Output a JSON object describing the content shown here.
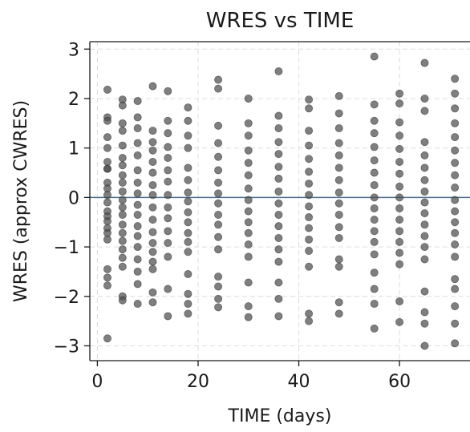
{
  "chart_data": {
    "type": "scatter",
    "title": "WRES vs TIME",
    "xlabel": "TIME (days)",
    "ylabel": "WRES (approx CWRES)",
    "xlim": [
      -1.5,
      74
    ],
    "ylim": [
      -3.3,
      3.15
    ],
    "xticks": [
      0,
      20,
      40,
      60
    ],
    "yticks": [
      -3,
      -2,
      -1,
      0,
      1,
      2,
      3
    ],
    "xtick_labels": [
      "0",
      "20",
      "40",
      "60"
    ],
    "ytick_labels": [
      "−3",
      "−2",
      "−1",
      "0",
      "1",
      "2",
      "3"
    ],
    "grid": true,
    "reference_line": {
      "y": 0,
      "color": "#4a6d8c"
    },
    "marker_color": "#4d4d4d",
    "series": [
      {
        "points": [
          {
            "x": 2,
            "y": 2.18
          },
          {
            "x": 2,
            "y": 1.62
          },
          {
            "x": 2,
            "y": 1.55
          },
          {
            "x": 2,
            "y": 1.22
          },
          {
            "x": 2,
            "y": 1.0
          },
          {
            "x": 2,
            "y": 0.72
          },
          {
            "x": 2,
            "y": 0.58
          },
          {
            "x": 2,
            "y": 0.58
          },
          {
            "x": 2,
            "y": 0.3
          },
          {
            "x": 2,
            "y": 0.18
          },
          {
            "x": 2,
            "y": 0.05
          },
          {
            "x": 2,
            "y": -0.1
          },
          {
            "x": 2,
            "y": -0.28
          },
          {
            "x": 2,
            "y": -0.38
          },
          {
            "x": 2,
            "y": -0.48
          },
          {
            "x": 2,
            "y": -0.62
          },
          {
            "x": 2,
            "y": -0.72
          },
          {
            "x": 2,
            "y": -0.85
          },
          {
            "x": 2,
            "y": -1.45
          },
          {
            "x": 2,
            "y": -1.62
          },
          {
            "x": 2,
            "y": -1.78
          },
          {
            "x": 2,
            "y": -2.85
          },
          {
            "x": 5,
            "y": 1.98
          },
          {
            "x": 5,
            "y": 1.86
          },
          {
            "x": 5,
            "y": 1.5
          },
          {
            "x": 5,
            "y": 1.35
          },
          {
            "x": 5,
            "y": 1.05
          },
          {
            "x": 5,
            "y": 0.8
          },
          {
            "x": 5,
            "y": 0.65
          },
          {
            "x": 5,
            "y": 0.45
          },
          {
            "x": 5,
            "y": 0.3
          },
          {
            "x": 5,
            "y": 0.12
          },
          {
            "x": 5,
            "y": -0.05
          },
          {
            "x": 5,
            "y": -0.2
          },
          {
            "x": 5,
            "y": -0.35
          },
          {
            "x": 5,
            "y": -0.55
          },
          {
            "x": 5,
            "y": -0.72
          },
          {
            "x": 5,
            "y": -0.88
          },
          {
            "x": 5,
            "y": -1.05
          },
          {
            "x": 5,
            "y": -1.22
          },
          {
            "x": 5,
            "y": -1.4
          },
          {
            "x": 5,
            "y": -2.0
          },
          {
            "x": 5,
            "y": -2.08
          },
          {
            "x": 8,
            "y": 1.95
          },
          {
            "x": 8,
            "y": 1.62
          },
          {
            "x": 8,
            "y": 1.4
          },
          {
            "x": 8,
            "y": 1.1
          },
          {
            "x": 8,
            "y": 0.85
          },
          {
            "x": 8,
            "y": 0.55
          },
          {
            "x": 8,
            "y": 0.3
          },
          {
            "x": 8,
            "y": 0.08
          },
          {
            "x": 8,
            "y": -0.15
          },
          {
            "x": 8,
            "y": -0.35
          },
          {
            "x": 8,
            "y": -0.58
          },
          {
            "x": 8,
            "y": -0.78
          },
          {
            "x": 8,
            "y": -1.0
          },
          {
            "x": 8,
            "y": -1.25
          },
          {
            "x": 8,
            "y": -1.5
          },
          {
            "x": 8,
            "y": -1.75
          },
          {
            "x": 8,
            "y": -2.15
          },
          {
            "x": 11,
            "y": 2.25
          },
          {
            "x": 11,
            "y": 1.35
          },
          {
            "x": 11,
            "y": 1.12
          },
          {
            "x": 11,
            "y": 0.95
          },
          {
            "x": 11,
            "y": 0.72
          },
          {
            "x": 11,
            "y": 0.5
          },
          {
            "x": 11,
            "y": 0.25
          },
          {
            "x": 11,
            "y": 0.05
          },
          {
            "x": 11,
            "y": -0.2
          },
          {
            "x": 11,
            "y": -0.45
          },
          {
            "x": 11,
            "y": -0.7
          },
          {
            "x": 11,
            "y": -0.92
          },
          {
            "x": 11,
            "y": -1.1
          },
          {
            "x": 11,
            "y": -1.3
          },
          {
            "x": 11,
            "y": -1.45
          },
          {
            "x": 11,
            "y": -1.92
          },
          {
            "x": 11,
            "y": -2.12
          },
          {
            "x": 14,
            "y": 2.15
          },
          {
            "x": 14,
            "y": 1.55
          },
          {
            "x": 14,
            "y": 1.3
          },
          {
            "x": 14,
            "y": 1.02
          },
          {
            "x": 14,
            "y": 0.8
          },
          {
            "x": 14,
            "y": 0.55
          },
          {
            "x": 14,
            "y": 0.32
          },
          {
            "x": 14,
            "y": 0.05
          },
          {
            "x": 14,
            "y": -0.2
          },
          {
            "x": 14,
            "y": -0.42
          },
          {
            "x": 14,
            "y": -0.68
          },
          {
            "x": 14,
            "y": -0.92
          },
          {
            "x": 14,
            "y": -1.2
          },
          {
            "x": 14,
            "y": -1.85
          },
          {
            "x": 14,
            "y": -2.4
          },
          {
            "x": 18,
            "y": 1.82
          },
          {
            "x": 18,
            "y": 1.55
          },
          {
            "x": 18,
            "y": 1.25
          },
          {
            "x": 18,
            "y": 1.0
          },
          {
            "x": 18,
            "y": 0.6
          },
          {
            "x": 18,
            "y": 0.35
          },
          {
            "x": 18,
            "y": 0.1
          },
          {
            "x": 18,
            "y": -0.08
          },
          {
            "x": 18,
            "y": -0.3
          },
          {
            "x": 18,
            "y": -0.5
          },
          {
            "x": 18,
            "y": -0.72
          },
          {
            "x": 18,
            "y": -0.9
          },
          {
            "x": 18,
            "y": -1.1
          },
          {
            "x": 18,
            "y": -1.55
          },
          {
            "x": 18,
            "y": -1.95
          },
          {
            "x": 18,
            "y": -2.15
          },
          {
            "x": 18,
            "y": -2.35
          },
          {
            "x": 24,
            "y": 2.38
          },
          {
            "x": 24,
            "y": 2.2
          },
          {
            "x": 24,
            "y": 1.45
          },
          {
            "x": 24,
            "y": 1.1
          },
          {
            "x": 24,
            "y": 0.82
          },
          {
            "x": 24,
            "y": 0.55
          },
          {
            "x": 24,
            "y": 0.3
          },
          {
            "x": 24,
            "y": 0.08
          },
          {
            "x": 24,
            "y": -0.12
          },
          {
            "x": 24,
            "y": -0.35
          },
          {
            "x": 24,
            "y": -0.55
          },
          {
            "x": 24,
            "y": -0.8
          },
          {
            "x": 24,
            "y": -1.05
          },
          {
            "x": 24,
            "y": -1.6
          },
          {
            "x": 24,
            "y": -1.8
          },
          {
            "x": 24,
            "y": -2.05
          },
          {
            "x": 24,
            "y": -2.22
          },
          {
            "x": 30,
            "y": 2.0
          },
          {
            "x": 30,
            "y": 1.5
          },
          {
            "x": 30,
            "y": 1.25
          },
          {
            "x": 30,
            "y": 0.95
          },
          {
            "x": 30,
            "y": 0.7
          },
          {
            "x": 30,
            "y": 0.45
          },
          {
            "x": 30,
            "y": 0.18
          },
          {
            "x": 30,
            "y": -0.05
          },
          {
            "x": 30,
            "y": -0.28
          },
          {
            "x": 30,
            "y": -0.5
          },
          {
            "x": 30,
            "y": -0.72
          },
          {
            "x": 30,
            "y": -0.95
          },
          {
            "x": 30,
            "y": -1.2
          },
          {
            "x": 30,
            "y": -1.72
          },
          {
            "x": 30,
            "y": -2.2
          },
          {
            "x": 30,
            "y": -2.42
          },
          {
            "x": 36,
            "y": 2.55
          },
          {
            "x": 36,
            "y": 1.65
          },
          {
            "x": 36,
            "y": 1.4
          },
          {
            "x": 36,
            "y": 1.12
          },
          {
            "x": 36,
            "y": 0.88
          },
          {
            "x": 36,
            "y": 0.62
          },
          {
            "x": 36,
            "y": 0.38
          },
          {
            "x": 36,
            "y": 0.12
          },
          {
            "x": 36,
            "y": -0.12
          },
          {
            "x": 36,
            "y": -0.35
          },
          {
            "x": 36,
            "y": -0.58
          },
          {
            "x": 36,
            "y": -0.82
          },
          {
            "x": 36,
            "y": -1.05
          },
          {
            "x": 36,
            "y": -1.3
          },
          {
            "x": 36,
            "y": -1.72
          },
          {
            "x": 36,
            "y": -2.05
          },
          {
            "x": 36,
            "y": -2.4
          },
          {
            "x": 42,
            "y": 1.98
          },
          {
            "x": 42,
            "y": 1.8
          },
          {
            "x": 42,
            "y": 1.35
          },
          {
            "x": 42,
            "y": 1.05
          },
          {
            "x": 42,
            "y": 0.78
          },
          {
            "x": 42,
            "y": 0.52
          },
          {
            "x": 42,
            "y": 0.28
          },
          {
            "x": 42,
            "y": 0.05
          },
          {
            "x": 42,
            "y": -0.18
          },
          {
            "x": 42,
            "y": -0.4
          },
          {
            "x": 42,
            "y": -0.62
          },
          {
            "x": 42,
            "y": -0.85
          },
          {
            "x": 42,
            "y": -1.08
          },
          {
            "x": 42,
            "y": -1.4
          },
          {
            "x": 42,
            "y": -2.35
          },
          {
            "x": 42,
            "y": -2.5
          },
          {
            "x": 48,
            "y": 2.05
          },
          {
            "x": 48,
            "y": 1.7
          },
          {
            "x": 48,
            "y": 1.4
          },
          {
            "x": 48,
            "y": 1.1
          },
          {
            "x": 48,
            "y": 0.85
          },
          {
            "x": 48,
            "y": 0.6
          },
          {
            "x": 48,
            "y": 0.35
          },
          {
            "x": 48,
            "y": 0.1
          },
          {
            "x": 48,
            "y": -0.12
          },
          {
            "x": 48,
            "y": -0.35
          },
          {
            "x": 48,
            "y": -0.6
          },
          {
            "x": 48,
            "y": -0.82
          },
          {
            "x": 48,
            "y": -1.25
          },
          {
            "x": 48,
            "y": -1.4
          },
          {
            "x": 48,
            "y": -2.12
          },
          {
            "x": 48,
            "y": -2.35
          },
          {
            "x": 55,
            "y": 2.85
          },
          {
            "x": 55,
            "y": 1.88
          },
          {
            "x": 55,
            "y": 1.55
          },
          {
            "x": 55,
            "y": 1.3
          },
          {
            "x": 55,
            "y": 1.02
          },
          {
            "x": 55,
            "y": 0.75
          },
          {
            "x": 55,
            "y": 0.5
          },
          {
            "x": 55,
            "y": 0.25
          },
          {
            "x": 55,
            "y": 0.0
          },
          {
            "x": 55,
            "y": -0.22
          },
          {
            "x": 55,
            "y": -0.45
          },
          {
            "x": 55,
            "y": -0.68
          },
          {
            "x": 55,
            "y": -0.9
          },
          {
            "x": 55,
            "y": -1.15
          },
          {
            "x": 55,
            "y": -1.52
          },
          {
            "x": 55,
            "y": -1.85
          },
          {
            "x": 55,
            "y": -2.15
          },
          {
            "x": 55,
            "y": -2.65
          },
          {
            "x": 60,
            "y": 2.1
          },
          {
            "x": 60,
            "y": 1.9
          },
          {
            "x": 60,
            "y": 1.52
          },
          {
            "x": 60,
            "y": 1.25
          },
          {
            "x": 60,
            "y": 0.98
          },
          {
            "x": 60,
            "y": 0.72
          },
          {
            "x": 60,
            "y": 0.48
          },
          {
            "x": 60,
            "y": 0.22
          },
          {
            "x": 60,
            "y": 0.0
          },
          {
            "x": 60,
            "y": -0.22
          },
          {
            "x": 60,
            "y": -0.45
          },
          {
            "x": 60,
            "y": -0.68
          },
          {
            "x": 60,
            "y": -0.9
          },
          {
            "x": 60,
            "y": -1.12
          },
          {
            "x": 60,
            "y": -1.35
          },
          {
            "x": 60,
            "y": -2.1
          },
          {
            "x": 60,
            "y": -2.52
          },
          {
            "x": 65,
            "y": 2.72
          },
          {
            "x": 65,
            "y": 2.0
          },
          {
            "x": 65,
            "y": 1.75
          },
          {
            "x": 65,
            "y": 1.12
          },
          {
            "x": 65,
            "y": 0.85
          },
          {
            "x": 65,
            "y": 0.6
          },
          {
            "x": 65,
            "y": 0.35
          },
          {
            "x": 65,
            "y": 0.12
          },
          {
            "x": 65,
            "y": -0.1
          },
          {
            "x": 65,
            "y": -0.32
          },
          {
            "x": 65,
            "y": -0.55
          },
          {
            "x": 65,
            "y": -0.78
          },
          {
            "x": 65,
            "y": -1.0
          },
          {
            "x": 65,
            "y": -1.25
          },
          {
            "x": 65,
            "y": -1.9
          },
          {
            "x": 65,
            "y": -2.32
          },
          {
            "x": 65,
            "y": -2.55
          },
          {
            "x": 65,
            "y": -3.0
          },
          {
            "x": 71,
            "y": 2.4
          },
          {
            "x": 71,
            "y": 2.1
          },
          {
            "x": 71,
            "y": 1.8
          },
          {
            "x": 71,
            "y": 1.5
          },
          {
            "x": 71,
            "y": 1.22
          },
          {
            "x": 71,
            "y": 0.95
          },
          {
            "x": 71,
            "y": 0.7
          },
          {
            "x": 71,
            "y": 0.45
          },
          {
            "x": 71,
            "y": 0.2
          },
          {
            "x": 71,
            "y": -0.05
          },
          {
            "x": 71,
            "y": -0.28
          },
          {
            "x": 71,
            "y": -0.5
          },
          {
            "x": 71,
            "y": -0.72
          },
          {
            "x": 71,
            "y": -0.95
          },
          {
            "x": 71,
            "y": -1.2
          },
          {
            "x": 71,
            "y": -1.65
          },
          {
            "x": 71,
            "y": -1.85
          },
          {
            "x": 71,
            "y": -2.2
          },
          {
            "x": 71,
            "y": -2.55
          },
          {
            "x": 71,
            "y": -2.95
          }
        ]
      }
    ]
  }
}
